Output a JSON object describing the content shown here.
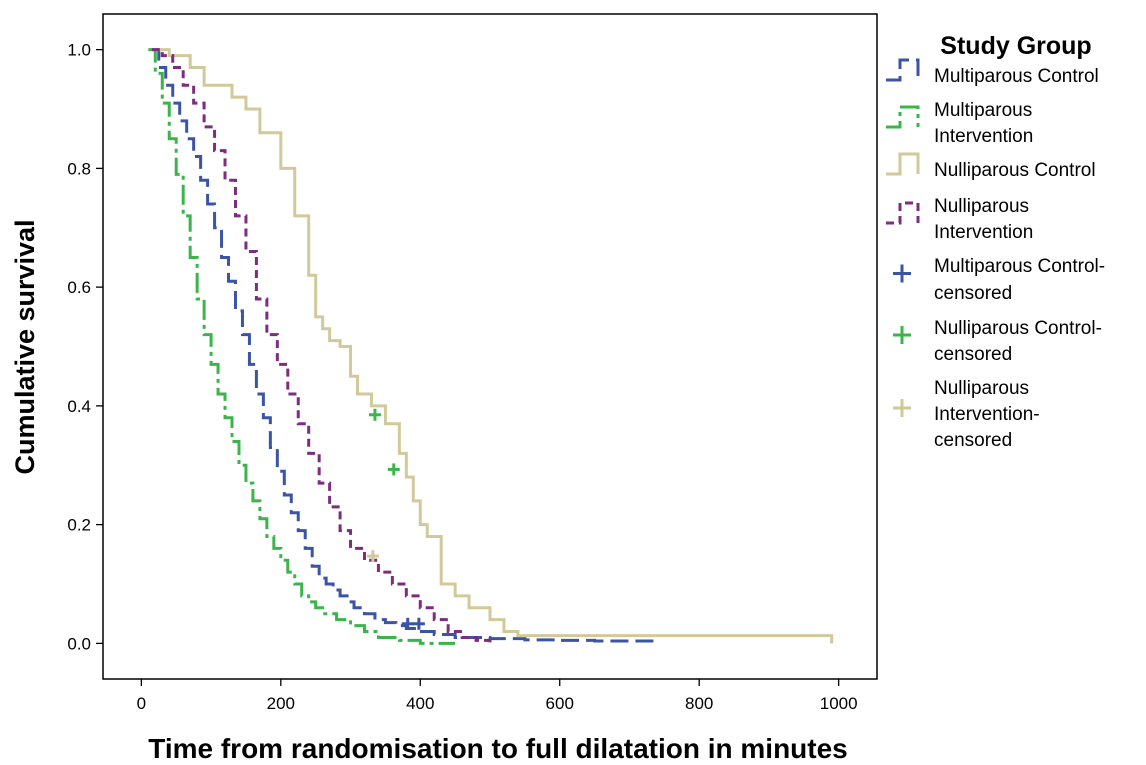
{
  "chart_data": {
    "type": "line",
    "step": true,
    "xlabel": "Time from randomisation to full dilatation in minutes",
    "ylabel": "Cumulative  survival",
    "xlim": [
      -55,
      1055
    ],
    "ylim": [
      -0.06,
      1.06
    ],
    "xticks": [
      0,
      200,
      400,
      600,
      800,
      1000
    ],
    "yticks": [
      0.0,
      0.2,
      0.4,
      0.6,
      0.8,
      1.0
    ],
    "yticklabels": [
      "0.0",
      "0.2",
      "0.4",
      "0.6",
      "0.8",
      "1.0"
    ],
    "grid": false,
    "legend": {
      "title": "Study Group",
      "position": "right",
      "entries": [
        {
          "label_lines": [
            "Multiparous Control"
          ],
          "kind": "line",
          "series": "Multiparous Control"
        },
        {
          "label_lines": [
            "Multiparous",
            "Intervention"
          ],
          "kind": "line",
          "series": "Multiparous Intervention"
        },
        {
          "label_lines": [
            "Nulliparous Control"
          ],
          "kind": "line",
          "series": "Nulliparous Control"
        },
        {
          "label_lines": [
            "Nulliparous",
            "Intervention"
          ],
          "kind": "line",
          "series": "Nulliparous Intervention"
        },
        {
          "label_lines": [
            "Multiparous Control-",
            "censored"
          ],
          "kind": "marker",
          "color": "#3b54a4"
        },
        {
          "label_lines": [
            "Nulliparous Control-",
            "censored"
          ],
          "kind": "marker",
          "color": "#3cb44b"
        },
        {
          "label_lines": [
            "Nulliparous",
            "Intervention-",
            "censored"
          ],
          "kind": "marker",
          "color": "#d2c99a"
        }
      ]
    },
    "series": [
      {
        "name": "Multiparous Control",
        "color": "#3b54a4",
        "dash": "18,7",
        "x": [
          15,
          25,
          35,
          45,
          55,
          65,
          75,
          85,
          95,
          105,
          115,
          125,
          135,
          145,
          155,
          165,
          175,
          185,
          195,
          205,
          215,
          225,
          235,
          245,
          255,
          265,
          275,
          285,
          295,
          305,
          320,
          335,
          350,
          365,
          380,
          395,
          420,
          450,
          500,
          550,
          600,
          650,
          735
        ],
        "y": [
          1.0,
          0.97,
          0.94,
          0.91,
          0.88,
          0.85,
          0.82,
          0.78,
          0.74,
          0.7,
          0.65,
          0.61,
          0.56,
          0.52,
          0.47,
          0.42,
          0.38,
          0.33,
          0.29,
          0.25,
          0.22,
          0.19,
          0.16,
          0.13,
          0.11,
          0.1,
          0.09,
          0.08,
          0.07,
          0.06,
          0.05,
          0.04,
          0.035,
          0.03,
          0.025,
          0.02,
          0.015,
          0.01,
          0.008,
          0.006,
          0.005,
          0.004,
          0.004
        ]
      },
      {
        "name": "Multiparous Intervention",
        "color": "#3cb44b",
        "dash": "20,5,4,5",
        "x": [
          10,
          20,
          30,
          40,
          50,
          60,
          70,
          80,
          90,
          100,
          110,
          120,
          130,
          140,
          150,
          160,
          170,
          180,
          190,
          200,
          210,
          220,
          230,
          240,
          250,
          260,
          280,
          300,
          320,
          340,
          370,
          400,
          440,
          450
        ],
        "y": [
          1.0,
          0.96,
          0.91,
          0.85,
          0.79,
          0.72,
          0.65,
          0.58,
          0.52,
          0.47,
          0.42,
          0.38,
          0.34,
          0.3,
          0.27,
          0.24,
          0.21,
          0.18,
          0.16,
          0.14,
          0.12,
          0.1,
          0.08,
          0.07,
          0.06,
          0.05,
          0.04,
          0.03,
          0.02,
          0.01,
          0.005,
          0.0,
          0.0,
          0.0
        ]
      },
      {
        "name": "Nulliparous Control",
        "color": "#d2c99a",
        "dash": "",
        "x": [
          15,
          40,
          70,
          90,
          130,
          150,
          170,
          200,
          220,
          240,
          250,
          260,
          270,
          285,
          300,
          310,
          330,
          350,
          370,
          380,
          390,
          400,
          410,
          430,
          450,
          470,
          500,
          520,
          540,
          600,
          700,
          800,
          900,
          990
        ],
        "y": [
          1.0,
          0.99,
          0.97,
          0.94,
          0.92,
          0.9,
          0.86,
          0.8,
          0.72,
          0.62,
          0.55,
          0.53,
          0.51,
          0.5,
          0.45,
          0.42,
          0.4,
          0.37,
          0.32,
          0.28,
          0.24,
          0.2,
          0.18,
          0.1,
          0.08,
          0.06,
          0.04,
          0.02,
          0.013,
          0.013,
          0.013,
          0.013,
          0.013,
          0.0
        ]
      },
      {
        "name": "Nulliparous Intervention",
        "color": "#7b2d7e",
        "dash": "8,5",
        "x": [
          15,
          30,
          45,
          60,
          75,
          90,
          105,
          120,
          135,
          150,
          165,
          180,
          195,
          210,
          225,
          240,
          255,
          270,
          285,
          300,
          320,
          340,
          360,
          380,
          400,
          420,
          440,
          460,
          480,
          500
        ],
        "y": [
          1.0,
          0.99,
          0.97,
          0.94,
          0.91,
          0.87,
          0.83,
          0.78,
          0.72,
          0.66,
          0.58,
          0.52,
          0.47,
          0.42,
          0.37,
          0.32,
          0.27,
          0.23,
          0.19,
          0.16,
          0.14,
          0.12,
          0.1,
          0.08,
          0.06,
          0.04,
          0.02,
          0.01,
          0.005,
          0.0
        ]
      }
    ],
    "censored": [
      {
        "group": "Multiparous Control-censored",
        "color": "#3b54a4",
        "points": [
          {
            "x": 382,
            "y": 0.033
          },
          {
            "x": 398,
            "y": 0.033
          }
        ]
      },
      {
        "group": "Nulliparous Control-censored",
        "color": "#3cb44b",
        "points": [
          {
            "x": 335,
            "y": 0.385
          },
          {
            "x": 362,
            "y": 0.293
          }
        ]
      },
      {
        "group": "Nulliparous Intervention-censored",
        "color": "#d2c99a",
        "points": [
          {
            "x": 332,
            "y": 0.147
          }
        ]
      }
    ]
  }
}
